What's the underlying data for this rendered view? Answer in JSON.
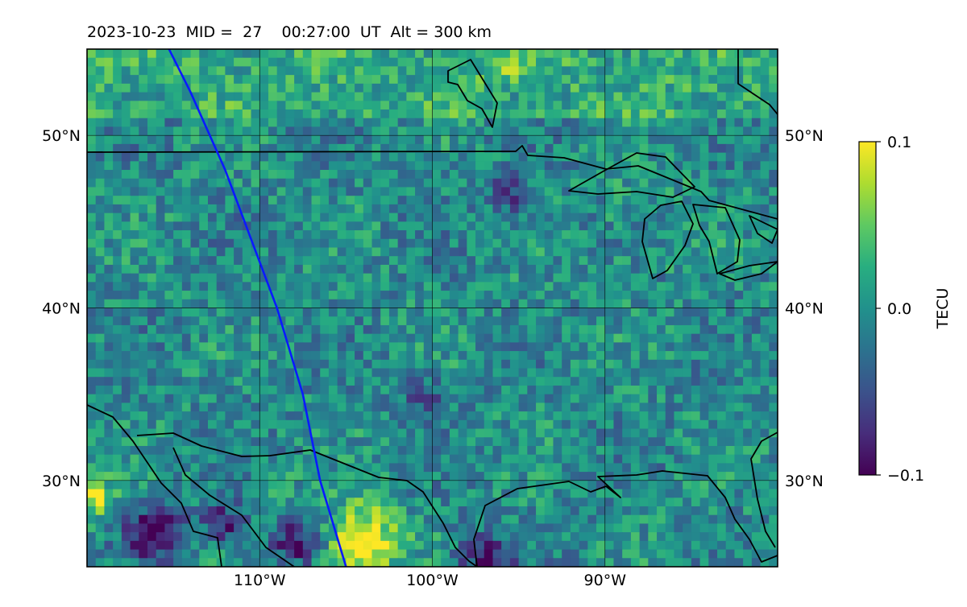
{
  "chart_data": {
    "type": "heatmap",
    "title": "2023-10-23  MID =  27    00:27:00  UT  Alt = 300 km",
    "map": {
      "lon_range": [
        -120,
        -80
      ],
      "lat_range": [
        25,
        55
      ],
      "lon_ticks": [
        -110,
        -100,
        -90
      ],
      "lon_tick_labels": [
        "110°W",
        "100°W",
        "90°W"
      ],
      "lat_ticks": [
        30,
        40,
        50
      ],
      "lat_tick_labels": [
        "30°N",
        "40°N",
        "50°N"
      ],
      "grid": true
    },
    "colorbar": {
      "label": "TECU",
      "colormap": "viridis",
      "range": [
        -0.1,
        0.1
      ],
      "ticks": [
        0.1,
        0.0,
        -0.1
      ],
      "tick_labels": [
        "0.1",
        "0.0",
        "−0.1"
      ]
    },
    "track": {
      "color": "#0a1aff",
      "points": [
        [
          -116.0,
          56.5
        ],
        [
          -114.0,
          52.5
        ],
        [
          -112.0,
          48.0
        ],
        [
          -110.5,
          44.0
        ],
        [
          -109.0,
          40.0
        ],
        [
          -107.5,
          35.0
        ],
        [
          -106.5,
          30.0
        ],
        [
          -105.0,
          25.0
        ]
      ]
    },
    "anomalies": [
      {
        "lon": -104.0,
        "lat": 26.5,
        "value": 0.12,
        "r": 2.0
      },
      {
        "lon": -119.5,
        "lat": 29.0,
        "value": 0.09,
        "r": 1.0
      },
      {
        "lon": -116.0,
        "lat": 27.0,
        "value": -0.1,
        "r": 1.6
      },
      {
        "lon": -112.0,
        "lat": 27.5,
        "value": -0.08,
        "r": 1.2
      },
      {
        "lon": -108.0,
        "lat": 26.5,
        "value": -0.09,
        "r": 1.3
      },
      {
        "lon": -97.0,
        "lat": 25.5,
        "value": -0.08,
        "r": 1.5
      },
      {
        "lon": -96.0,
        "lat": 54.0,
        "value": 0.05,
        "r": 1.0
      },
      {
        "lon": -109.0,
        "lat": 29.5,
        "value": 0.06,
        "r": 0.8
      },
      {
        "lon": -95.5,
        "lat": 46.5,
        "value": -0.06,
        "r": 1.2
      },
      {
        "lon": -100.5,
        "lat": 35.0,
        "value": -0.06,
        "r": 1.0
      }
    ]
  }
}
